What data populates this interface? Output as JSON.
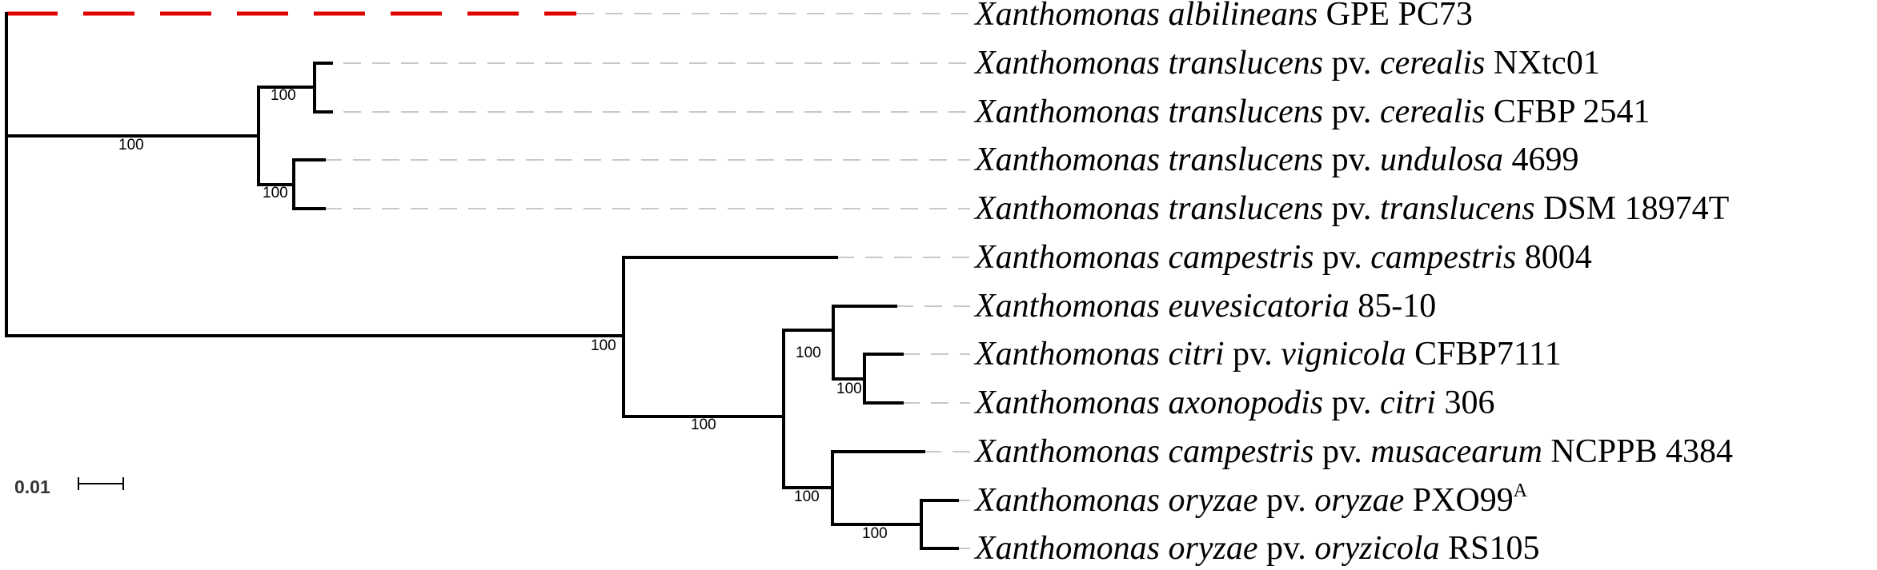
{
  "tree": {
    "scale_bar_label": "0.01",
    "outgroup_branch_color": "#e00000",
    "branch_color": "#000000",
    "guide_line_color": "#c8c8c8",
    "taxa": [
      {
        "id": "t1",
        "genus": "Xanthomonas",
        "species": "albilineans",
        "pv_prefix": "",
        "pathovar": "",
        "strain": "GPE PC73",
        "sup": ""
      },
      {
        "id": "t2",
        "genus": "Xanthomonas",
        "species": "translucens",
        "pv_prefix": "pv.",
        "pathovar": "cerealis",
        "strain": "NXtc01",
        "sup": ""
      },
      {
        "id": "t3",
        "genus": "Xanthomonas",
        "species": "translucens",
        "pv_prefix": "pv.",
        "pathovar": "cerealis",
        "strain": "CFBP 2541",
        "sup": ""
      },
      {
        "id": "t4",
        "genus": "Xanthomonas",
        "species": "translucens",
        "pv_prefix": "pv.",
        "pathovar": "undulosa",
        "strain": "4699",
        "sup": ""
      },
      {
        "id": "t5",
        "genus": "Xanthomonas",
        "species": "translucens",
        "pv_prefix": "pv.",
        "pathovar": "translucens",
        "strain": "DSM 18974T",
        "sup": ""
      },
      {
        "id": "t6",
        "genus": "Xanthomonas",
        "species": "campestris",
        "pv_prefix": "pv.",
        "pathovar": "campestris",
        "strain": "8004",
        "sup": ""
      },
      {
        "id": "t7",
        "genus": "Xanthomonas",
        "species": "euvesicatoria",
        "pv_prefix": "",
        "pathovar": "",
        "strain": "85-10",
        "sup": ""
      },
      {
        "id": "t8",
        "genus": "Xanthomonas",
        "species": "citri",
        "pv_prefix": "pv.",
        "pathovar": "vignicola",
        "strain": "CFBP7111",
        "sup": ""
      },
      {
        "id": "t9",
        "genus": "Xanthomonas",
        "species": "axonopodis",
        "pv_prefix": "pv.",
        "pathovar": "citri",
        "strain": "306",
        "sup": ""
      },
      {
        "id": "t10",
        "genus": "Xanthomonas",
        "species": "campestris",
        "pv_prefix": "pv.",
        "pathovar": "musacearum",
        "strain": "NCPPB 4384",
        "sup": ""
      },
      {
        "id": "t11",
        "genus": "Xanthomonas",
        "species": "oryzae",
        "pv_prefix": "pv.",
        "pathovar": "oryzae",
        "strain": "PXO99",
        "sup": "A"
      },
      {
        "id": "t12",
        "genus": "Xanthomonas",
        "species": "oryzae",
        "pv_prefix": "pv.",
        "pathovar": "oryzicola",
        "strain": "RS105",
        "sup": ""
      }
    ],
    "support_values": [
      {
        "id": "s_translucens_clade",
        "value": "100"
      },
      {
        "id": "s_cerealis_pair",
        "value": "100"
      },
      {
        "id": "s_undulosa_pair",
        "value": "100"
      },
      {
        "id": "s_campestris_clade",
        "value": "100"
      },
      {
        "id": "s_core_clade",
        "value": "100"
      },
      {
        "id": "s_euvesicatoria_clade",
        "value": "100"
      },
      {
        "id": "s_citri_pair",
        "value": "100"
      },
      {
        "id": "s_oryzae_clade",
        "value": "100"
      },
      {
        "id": "s_oryzae_pair",
        "value": "100"
      }
    ]
  }
}
